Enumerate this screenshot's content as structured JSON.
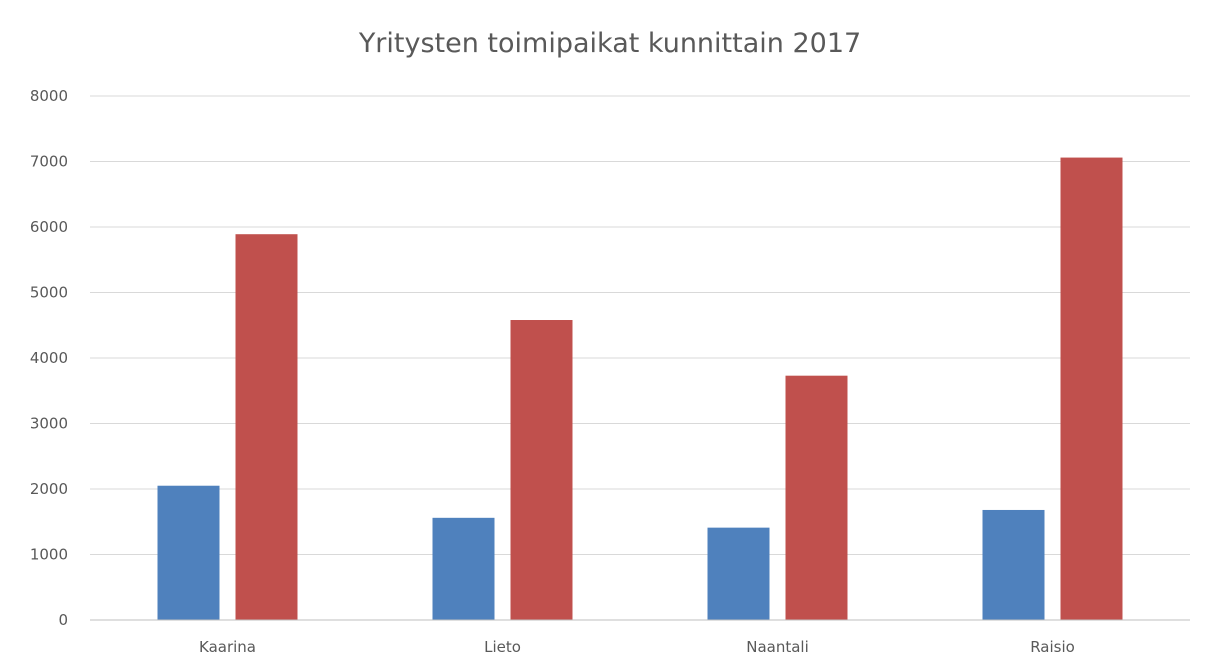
{
  "chart_data": {
    "type": "bar",
    "title": "Yritysten toimipaikat kunnittain 2017",
    "categories": [
      "Kaarina",
      "Lieto",
      "Naantali",
      "Raisio"
    ],
    "series": [
      {
        "values": [
          2050,
          1560,
          1410,
          1680
        ],
        "color": "#4f81bd"
      },
      {
        "values": [
          5890,
          4580,
          3730,
          7060
        ],
        "color": "#c0504d"
      }
    ],
    "ylim": [
      0,
      8000
    ],
    "yticks": [
      0,
      1000,
      2000,
      3000,
      4000,
      5000,
      6000,
      7000,
      8000
    ],
    "grid": true,
    "legend": "none",
    "xlabel": "",
    "ylabel": ""
  }
}
